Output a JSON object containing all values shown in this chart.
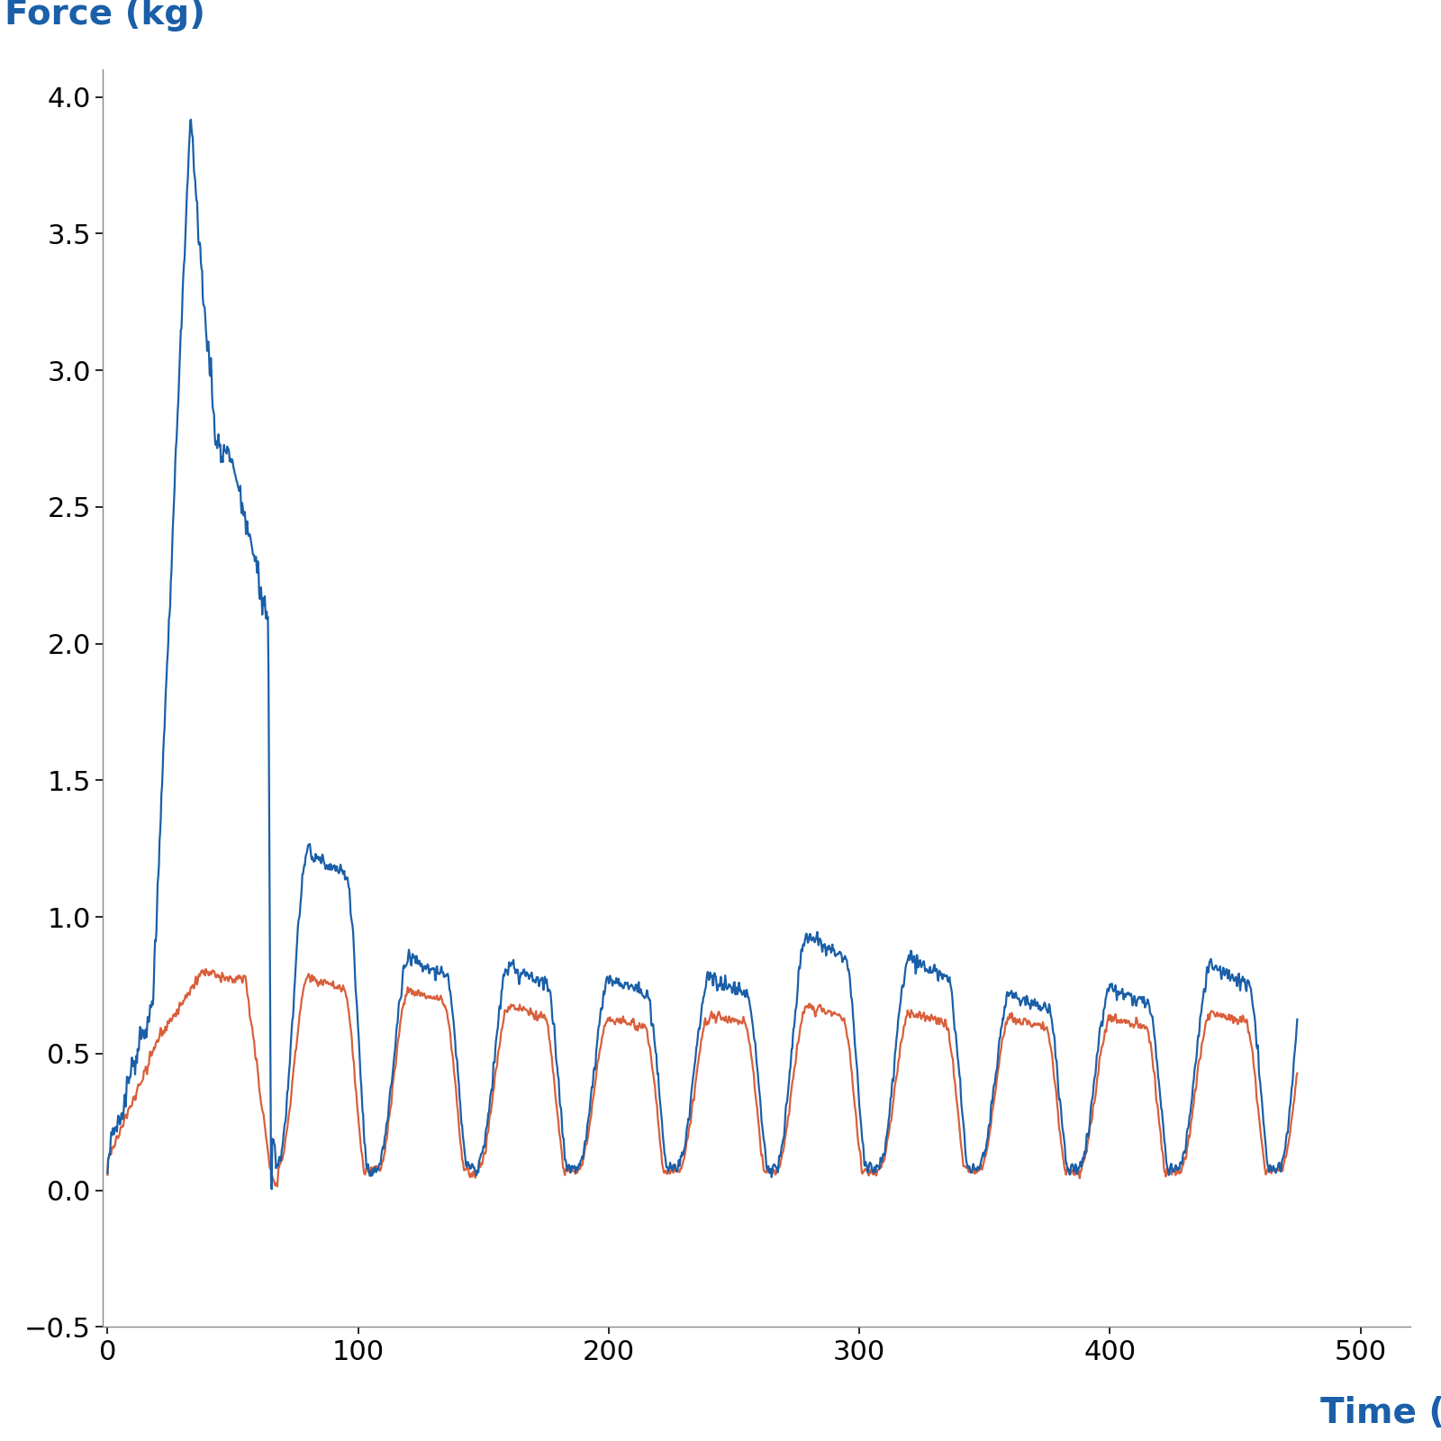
{
  "title": "",
  "xlabel": "Time (sec)",
  "ylabel": "Force (kg)",
  "xlabel_color": "#1a5fa8",
  "ylabel_color": "#1a5fa8",
  "blue_color": "#1a5fa8",
  "orange_color": "#d95f3b",
  "xlim": [
    -2,
    520
  ],
  "ylim": [
    -0.5,
    4.1
  ],
  "xticks": [
    0,
    100,
    200,
    300,
    400,
    500
  ],
  "yticks": [
    -0.5,
    0.0,
    0.5,
    1.0,
    1.5,
    2.0,
    2.5,
    3.0,
    3.5,
    4.0
  ],
  "figsize": [
    16,
    16
  ],
  "dpi": 100,
  "label_fontsize": 28,
  "tick_fontsize": 22,
  "linewidth": 1.6,
  "background_color": "#ffffff"
}
